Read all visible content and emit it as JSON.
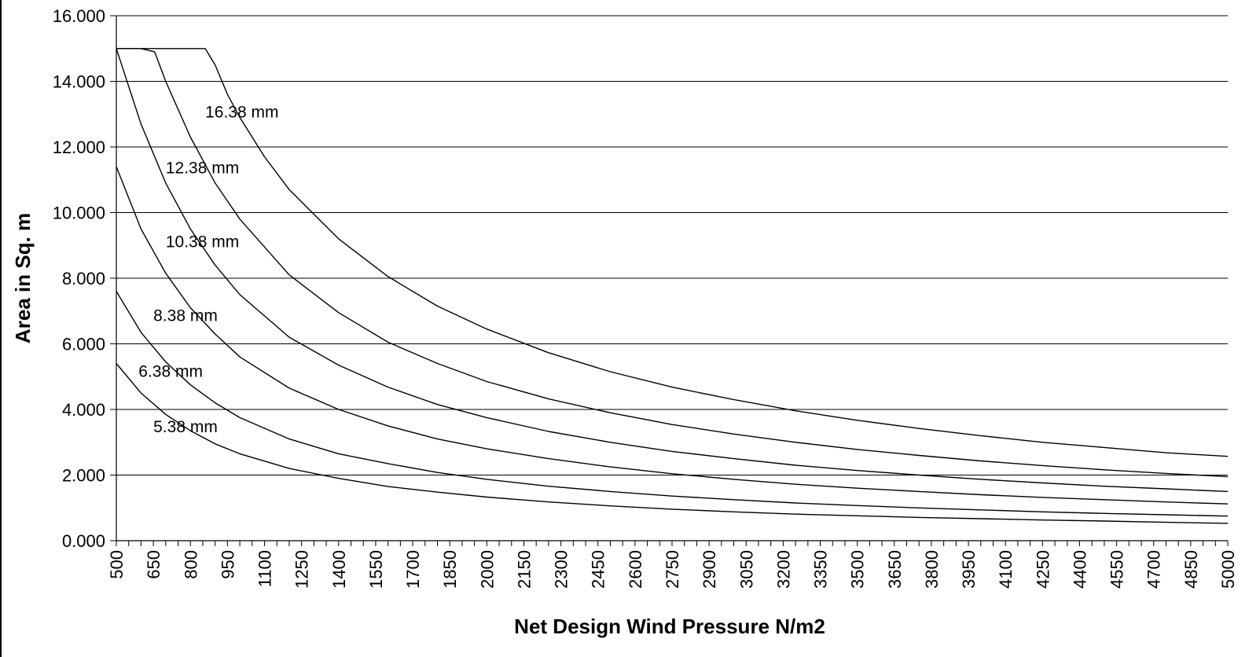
{
  "chart_data": {
    "type": "line",
    "title": "",
    "xlabel": "Net Design Wind Pressure N/m2",
    "ylabel": "Area in Sq. m",
    "xlim": [
      500,
      5000
    ],
    "ylim": [
      0,
      16
    ],
    "grid": "horizontal",
    "x_tick_labels": [
      "500",
      "650",
      "800",
      "950",
      "1100",
      "1250",
      "1400",
      "1550",
      "1700",
      "1850",
      "2000",
      "2150",
      "2300",
      "2450",
      "2600",
      "2750",
      "2900",
      "3050",
      "3200",
      "3350",
      "3500",
      "3650",
      "3800",
      "3950",
      "4100",
      "4250",
      "4400",
      "4550",
      "4700",
      "4850",
      "5000"
    ],
    "y_tick_labels": [
      "0.000",
      "2.000",
      "4.000",
      "6.000",
      "8.000",
      "10.000",
      "12.000",
      "14.000",
      "16.000"
    ],
    "y_tick_values": [
      0,
      2,
      4,
      6,
      8,
      10,
      12,
      14,
      16
    ],
    "series": [
      {
        "name": "5.38 mm",
        "label_at": [
          650,
          3.3
        ],
        "points": [
          [
            500,
            5.4
          ],
          [
            600,
            4.5
          ],
          [
            700,
            3.85
          ],
          [
            800,
            3.35
          ],
          [
            900,
            2.95
          ],
          [
            1000,
            2.65
          ],
          [
            1200,
            2.2
          ],
          [
            1400,
            1.9
          ],
          [
            1600,
            1.65
          ],
          [
            1800,
            1.48
          ],
          [
            2000,
            1.33
          ],
          [
            2250,
            1.18
          ],
          [
            2500,
            1.06
          ],
          [
            2750,
            0.96
          ],
          [
            3000,
            0.88
          ],
          [
            3250,
            0.81
          ],
          [
            3500,
            0.76
          ],
          [
            3750,
            0.71
          ],
          [
            4000,
            0.67
          ],
          [
            4250,
            0.63
          ],
          [
            4500,
            0.6
          ],
          [
            4750,
            0.56
          ],
          [
            5000,
            0.53
          ]
        ]
      },
      {
        "name": "6.38 mm",
        "label_at": [
          590,
          5.0
        ],
        "points": [
          [
            500,
            7.6
          ],
          [
            600,
            6.35
          ],
          [
            700,
            5.45
          ],
          [
            800,
            4.75
          ],
          [
            900,
            4.2
          ],
          [
            1000,
            3.75
          ],
          [
            1200,
            3.1
          ],
          [
            1400,
            2.65
          ],
          [
            1600,
            2.35
          ],
          [
            1800,
            2.08
          ],
          [
            2000,
            1.87
          ],
          [
            2250,
            1.66
          ],
          [
            2500,
            1.5
          ],
          [
            2750,
            1.36
          ],
          [
            3000,
            1.25
          ],
          [
            3250,
            1.15
          ],
          [
            3500,
            1.07
          ],
          [
            3750,
            1.0
          ],
          [
            4000,
            0.94
          ],
          [
            4250,
            0.88
          ],
          [
            4500,
            0.83
          ],
          [
            4750,
            0.79
          ],
          [
            5000,
            0.75
          ]
        ]
      },
      {
        "name": "8.38 mm",
        "label_at": [
          650,
          6.7
        ],
        "points": [
          [
            500,
            11.4
          ],
          [
            600,
            9.5
          ],
          [
            700,
            8.15
          ],
          [
            800,
            7.1
          ],
          [
            900,
            6.3
          ],
          [
            1000,
            5.6
          ],
          [
            1200,
            4.65
          ],
          [
            1400,
            4.0
          ],
          [
            1600,
            3.5
          ],
          [
            1800,
            3.1
          ],
          [
            2000,
            2.8
          ],
          [
            2250,
            2.5
          ],
          [
            2500,
            2.25
          ],
          [
            2750,
            2.04
          ],
          [
            3000,
            1.87
          ],
          [
            3250,
            1.72
          ],
          [
            3500,
            1.6
          ],
          [
            3750,
            1.5
          ],
          [
            4000,
            1.4
          ],
          [
            4250,
            1.32
          ],
          [
            4500,
            1.25
          ],
          [
            4750,
            1.18
          ],
          [
            5000,
            1.12
          ]
        ]
      },
      {
        "name": "10.38 mm",
        "label_at": [
          700,
          8.95
        ],
        "points": [
          [
            500,
            15.0
          ],
          [
            600,
            12.7
          ],
          [
            700,
            10.9
          ],
          [
            800,
            9.5
          ],
          [
            900,
            8.4
          ],
          [
            1000,
            7.5
          ],
          [
            1200,
            6.2
          ],
          [
            1400,
            5.35
          ],
          [
            1600,
            4.68
          ],
          [
            1800,
            4.15
          ],
          [
            2000,
            3.75
          ],
          [
            2250,
            3.33
          ],
          [
            2500,
            3.0
          ],
          [
            2750,
            2.72
          ],
          [
            3000,
            2.5
          ],
          [
            3250,
            2.3
          ],
          [
            3500,
            2.14
          ],
          [
            3750,
            2.0
          ],
          [
            4000,
            1.87
          ],
          [
            4250,
            1.76
          ],
          [
            4500,
            1.66
          ],
          [
            4750,
            1.58
          ],
          [
            5000,
            1.5
          ]
        ]
      },
      {
        "name": "12.38 mm",
        "label_at": [
          700,
          11.2
        ],
        "points": [
          [
            500,
            15.0
          ],
          [
            600,
            15.0
          ],
          [
            655,
            14.9
          ],
          [
            700,
            14.0
          ],
          [
            800,
            12.3
          ],
          [
            900,
            10.9
          ],
          [
            1000,
            9.8
          ],
          [
            1200,
            8.1
          ],
          [
            1400,
            6.95
          ],
          [
            1600,
            6.05
          ],
          [
            1800,
            5.4
          ],
          [
            2000,
            4.85
          ],
          [
            2250,
            4.32
          ],
          [
            2500,
            3.9
          ],
          [
            2750,
            3.54
          ],
          [
            3000,
            3.25
          ],
          [
            3250,
            3.0
          ],
          [
            3500,
            2.78
          ],
          [
            3750,
            2.6
          ],
          [
            4000,
            2.43
          ],
          [
            4250,
            2.29
          ],
          [
            4500,
            2.16
          ],
          [
            4750,
            2.05
          ],
          [
            5000,
            1.95
          ]
        ]
      },
      {
        "name": "16.38 mm",
        "label_at": [
          860,
          12.9
        ],
        "points": [
          [
            500,
            15.0
          ],
          [
            600,
            15.0
          ],
          [
            700,
            15.0
          ],
          [
            860,
            15.0
          ],
          [
            900,
            14.5
          ],
          [
            950,
            13.6
          ],
          [
            1000,
            12.9
          ],
          [
            1100,
            11.7
          ],
          [
            1200,
            10.7
          ],
          [
            1400,
            9.2
          ],
          [
            1600,
            8.05
          ],
          [
            1800,
            7.15
          ],
          [
            2000,
            6.45
          ],
          [
            2250,
            5.73
          ],
          [
            2500,
            5.15
          ],
          [
            2750,
            4.68
          ],
          [
            3000,
            4.3
          ],
          [
            3250,
            3.96
          ],
          [
            3500,
            3.67
          ],
          [
            3750,
            3.42
          ],
          [
            4000,
            3.2
          ],
          [
            4250,
            3.0
          ],
          [
            4500,
            2.84
          ],
          [
            4750,
            2.68
          ],
          [
            5000,
            2.57
          ]
        ]
      }
    ]
  }
}
